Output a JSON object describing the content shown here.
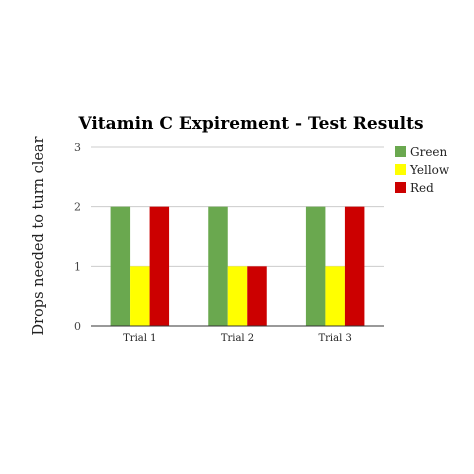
{
  "chart_data": {
    "type": "bar",
    "title": "Vitamin C Expirement - Test Results",
    "xlabel": "",
    "ylabel": "Drops needed to turn clear",
    "categories": [
      "Trial 1",
      "Trial 2",
      "Trial 3"
    ],
    "series": [
      {
        "name": "Green",
        "color": "#6aa84f",
        "values": [
          2,
          2,
          2
        ]
      },
      {
        "name": "Yellow",
        "color": "#ffff00",
        "values": [
          1,
          1,
          1
        ]
      },
      {
        "name": "Red",
        "color": "#cc0000",
        "values": [
          2,
          1,
          2
        ]
      }
    ],
    "ylim": [
      0,
      3
    ],
    "yticks": [
      "0",
      "1",
      "2",
      "3"
    ],
    "grid": true,
    "legend_position": "right"
  }
}
